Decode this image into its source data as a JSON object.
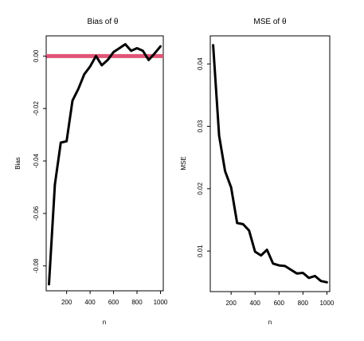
{
  "chart_data": [
    {
      "type": "line",
      "title": "Bias of θ",
      "xlabel": "n",
      "ylabel": "Bias",
      "xlim": [
        26,
        1024
      ],
      "ylim": [
        -0.0895,
        0.0077
      ],
      "x_ticks": [
        200,
        400,
        600,
        800,
        1000
      ],
      "y_ticks": [
        0.0,
        -0.02,
        -0.04,
        -0.06,
        -0.08
      ],
      "y_tick_labels": [
        "0.00",
        "-0.02",
        "-0.04",
        "-0.06",
        "-0.08"
      ],
      "reference_line": {
        "y": 0.0,
        "color": "#e05577"
      },
      "line_color": "#000000",
      "grid": false,
      "x": [
        50,
        100,
        150,
        200,
        250,
        300,
        350,
        400,
        450,
        500,
        550,
        600,
        650,
        700,
        750,
        800,
        850,
        900,
        950,
        1000
      ],
      "y": [
        -0.087,
        -0.049,
        -0.033,
        -0.0325,
        -0.017,
        -0.0125,
        -0.007,
        -0.004,
        0.0,
        -0.0035,
        -0.0015,
        0.0015,
        0.003,
        0.0045,
        0.002,
        0.003,
        0.002,
        -0.0015,
        0.001,
        0.0037
      ]
    },
    {
      "type": "line",
      "title": "MSE of θ",
      "xlabel": "n",
      "ylabel": "MSE",
      "xlim": [
        26,
        1024
      ],
      "ylim": [
        0.0035,
        0.0445
      ],
      "x_ticks": [
        200,
        400,
        600,
        800,
        1000
      ],
      "y_ticks": [
        0.01,
        0.02,
        0.03,
        0.04
      ],
      "y_tick_labels": [
        "0.01",
        "0.02",
        "0.03",
        "0.04"
      ],
      "line_color": "#000000",
      "grid": false,
      "x": [
        50,
        100,
        150,
        200,
        250,
        300,
        350,
        400,
        450,
        500,
        550,
        600,
        650,
        700,
        750,
        800,
        850,
        900,
        950,
        1000
      ],
      "y": [
        0.043,
        0.0285,
        0.0228,
        0.0202,
        0.0145,
        0.0143,
        0.0133,
        0.0099,
        0.0093,
        0.0102,
        0.008,
        0.0077,
        0.0076,
        0.007,
        0.0064,
        0.0065,
        0.0057,
        0.006,
        0.0052,
        0.005
      ]
    }
  ]
}
